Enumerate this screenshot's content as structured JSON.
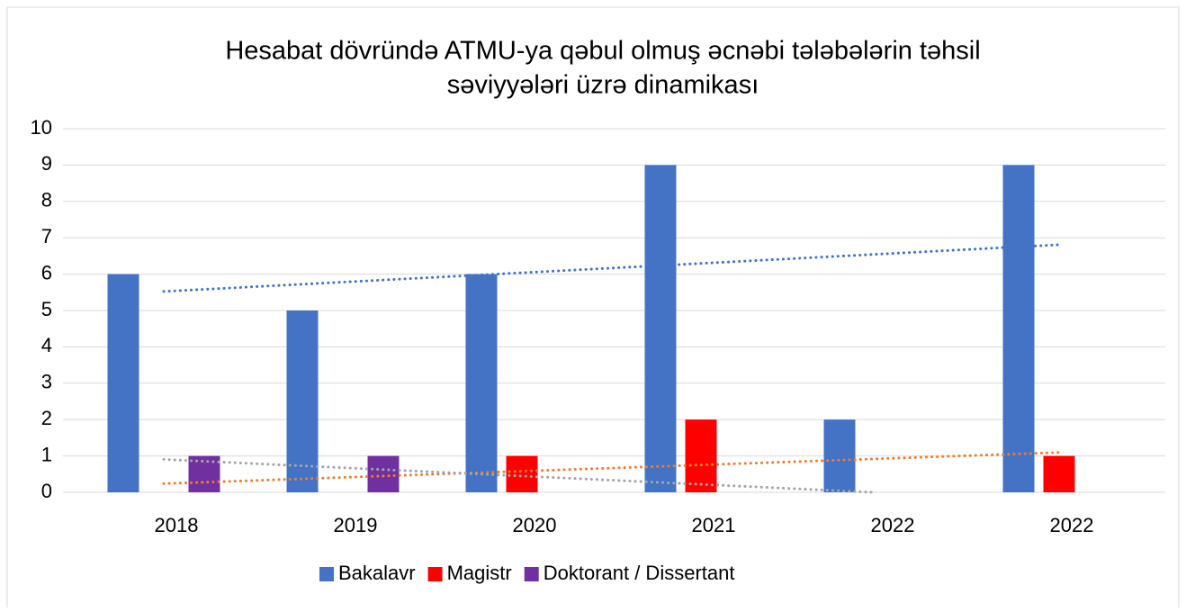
{
  "chart_data": {
    "type": "bar",
    "title_lines": [
      "Hesabat dövründə ATMU-ya qəbul olmuş əcnəbi tələbələrin təhsil",
      "səviyyələri üzrə dinamikası"
    ],
    "categories": [
      "2018",
      "2019",
      "2020",
      "2021",
      "2022",
      "2022"
    ],
    "series": [
      {
        "name": "Bakalavr",
        "color": "#4472c4",
        "trend_color": "#4472c4",
        "values": [
          6,
          5,
          6,
          9,
          2,
          9
        ]
      },
      {
        "name": "Magistr",
        "color": "#ff0000",
        "trend_color": "#ed7d31",
        "values": [
          0,
          0,
          1,
          2,
          0,
          1
        ]
      },
      {
        "name": "Doktorant / Dissertant",
        "color": "#7030a0",
        "trend_color": "#a5a5a5",
        "values": [
          1,
          1,
          0,
          0,
          0,
          0
        ]
      }
    ],
    "ylim": [
      0,
      10
    ],
    "yticks": [
      0,
      1,
      2,
      3,
      4,
      5,
      6,
      7,
      8,
      9,
      10
    ],
    "grid": true,
    "trendline": "linear",
    "legend": "bottom"
  }
}
